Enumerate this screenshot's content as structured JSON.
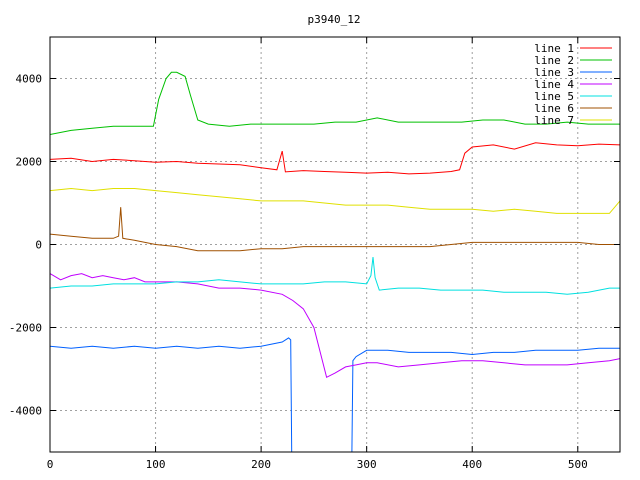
{
  "chart_data": {
    "type": "line",
    "title": "p3940_12",
    "xlabel": "",
    "ylabel": "",
    "xlim": [
      0,
      540
    ],
    "ylim": [
      -5000,
      5000
    ],
    "x_ticks": [
      0,
      100,
      200,
      300,
      400,
      500
    ],
    "y_ticks": [
      -4000,
      -2000,
      0,
      2000,
      4000
    ],
    "grid": true,
    "legend_position": "top-right",
    "series": [
      {
        "name": "line 1",
        "color": "#ff0000",
        "points": [
          [
            0,
            2050
          ],
          [
            20,
            2080
          ],
          [
            40,
            2000
          ],
          [
            60,
            2050
          ],
          [
            80,
            2020
          ],
          [
            100,
            1980
          ],
          [
            120,
            2000
          ],
          [
            140,
            1960
          ],
          [
            160,
            1940
          ],
          [
            180,
            1920
          ],
          [
            200,
            1850
          ],
          [
            215,
            1800
          ],
          [
            220,
            2250
          ],
          [
            223,
            1750
          ],
          [
            240,
            1780
          ],
          [
            260,
            1760
          ],
          [
            280,
            1740
          ],
          [
            300,
            1720
          ],
          [
            320,
            1740
          ],
          [
            340,
            1700
          ],
          [
            360,
            1720
          ],
          [
            380,
            1760
          ],
          [
            388,
            1800
          ],
          [
            393,
            2200
          ],
          [
            400,
            2350
          ],
          [
            420,
            2400
          ],
          [
            440,
            2300
          ],
          [
            460,
            2450
          ],
          [
            480,
            2400
          ],
          [
            500,
            2380
          ],
          [
            520,
            2420
          ],
          [
            540,
            2400
          ]
        ]
      },
      {
        "name": "line 2",
        "color": "#00c000",
        "points": [
          [
            0,
            2650
          ],
          [
            20,
            2750
          ],
          [
            40,
            2800
          ],
          [
            60,
            2850
          ],
          [
            80,
            2850
          ],
          [
            98,
            2850
          ],
          [
            103,
            3500
          ],
          [
            110,
            4000
          ],
          [
            115,
            4150
          ],
          [
            120,
            4150
          ],
          [
            128,
            4050
          ],
          [
            133,
            3600
          ],
          [
            140,
            3000
          ],
          [
            150,
            2900
          ],
          [
            170,
            2850
          ],
          [
            190,
            2900
          ],
          [
            210,
            2900
          ],
          [
            230,
            2900
          ],
          [
            250,
            2900
          ],
          [
            270,
            2950
          ],
          [
            290,
            2950
          ],
          [
            310,
            3050
          ],
          [
            330,
            2950
          ],
          [
            350,
            2950
          ],
          [
            370,
            2950
          ],
          [
            390,
            2950
          ],
          [
            410,
            3000
          ],
          [
            430,
            3000
          ],
          [
            450,
            2900
          ],
          [
            470,
            2900
          ],
          [
            490,
            2950
          ],
          [
            510,
            2900
          ],
          [
            530,
            2900
          ],
          [
            540,
            2900
          ]
        ]
      },
      {
        "name": "line 3",
        "color": "#0060ff",
        "points": [
          [
            0,
            -2450
          ],
          [
            20,
            -2500
          ],
          [
            40,
            -2450
          ],
          [
            60,
            -2500
          ],
          [
            80,
            -2450
          ],
          [
            100,
            -2500
          ],
          [
            120,
            -2450
          ],
          [
            140,
            -2500
          ],
          [
            160,
            -2450
          ],
          [
            180,
            -2500
          ],
          [
            200,
            -2450
          ],
          [
            220,
            -2350
          ],
          [
            226,
            -2250
          ],
          [
            228,
            -2300
          ],
          [
            229,
            -5000
          ],
          [
            286,
            -5000
          ],
          [
            287,
            -2800
          ],
          [
            290,
            -2700
          ],
          [
            300,
            -2550
          ],
          [
            320,
            -2550
          ],
          [
            340,
            -2600
          ],
          [
            360,
            -2600
          ],
          [
            380,
            -2600
          ],
          [
            400,
            -2650
          ],
          [
            420,
            -2600
          ],
          [
            440,
            -2600
          ],
          [
            460,
            -2550
          ],
          [
            480,
            -2550
          ],
          [
            500,
            -2550
          ],
          [
            520,
            -2500
          ],
          [
            540,
            -2500
          ]
        ]
      },
      {
        "name": "line 4",
        "color": "#c000ff",
        "points": [
          [
            0,
            -700
          ],
          [
            10,
            -850
          ],
          [
            20,
            -750
          ],
          [
            30,
            -700
          ],
          [
            40,
            -800
          ],
          [
            50,
            -750
          ],
          [
            60,
            -800
          ],
          [
            70,
            -850
          ],
          [
            80,
            -800
          ],
          [
            90,
            -900
          ],
          [
            100,
            -900
          ],
          [
            120,
            -900
          ],
          [
            140,
            -950
          ],
          [
            160,
            -1050
          ],
          [
            180,
            -1050
          ],
          [
            200,
            -1100
          ],
          [
            220,
            -1200
          ],
          [
            230,
            -1350
          ],
          [
            240,
            -1550
          ],
          [
            250,
            -2000
          ],
          [
            255,
            -2500
          ],
          [
            262,
            -3200
          ],
          [
            270,
            -3100
          ],
          [
            280,
            -2950
          ],
          [
            290,
            -2900
          ],
          [
            300,
            -2850
          ],
          [
            310,
            -2850
          ],
          [
            330,
            -2950
          ],
          [
            350,
            -2900
          ],
          [
            370,
            -2850
          ],
          [
            390,
            -2800
          ],
          [
            410,
            -2800
          ],
          [
            430,
            -2850
          ],
          [
            450,
            -2900
          ],
          [
            470,
            -2900
          ],
          [
            490,
            -2900
          ],
          [
            510,
            -2850
          ],
          [
            530,
            -2800
          ],
          [
            540,
            -2750
          ]
        ]
      },
      {
        "name": "line 5",
        "color": "#00e0e0",
        "points": [
          [
            0,
            -1050
          ],
          [
            20,
            -1000
          ],
          [
            40,
            -1000
          ],
          [
            60,
            -950
          ],
          [
            80,
            -950
          ],
          [
            100,
            -950
          ],
          [
            120,
            -900
          ],
          [
            140,
            -900
          ],
          [
            160,
            -850
          ],
          [
            180,
            -900
          ],
          [
            200,
            -950
          ],
          [
            220,
            -950
          ],
          [
            240,
            -950
          ],
          [
            260,
            -900
          ],
          [
            280,
            -900
          ],
          [
            300,
            -950
          ],
          [
            304,
            -750
          ],
          [
            306,
            -300
          ],
          [
            308,
            -800
          ],
          [
            312,
            -1100
          ],
          [
            330,
            -1050
          ],
          [
            350,
            -1050
          ],
          [
            370,
            -1100
          ],
          [
            390,
            -1100
          ],
          [
            410,
            -1100
          ],
          [
            430,
            -1150
          ],
          [
            450,
            -1150
          ],
          [
            470,
            -1150
          ],
          [
            490,
            -1200
          ],
          [
            510,
            -1150
          ],
          [
            530,
            -1050
          ],
          [
            540,
            -1050
          ]
        ]
      },
      {
        "name": "line 6",
        "color": "#a05000",
        "points": [
          [
            0,
            250
          ],
          [
            20,
            200
          ],
          [
            40,
            150
          ],
          [
            60,
            150
          ],
          [
            65,
            200
          ],
          [
            67,
            900
          ],
          [
            69,
            150
          ],
          [
            80,
            100
          ],
          [
            100,
            0
          ],
          [
            120,
            -50
          ],
          [
            140,
            -150
          ],
          [
            160,
            -150
          ],
          [
            180,
            -150
          ],
          [
            200,
            -100
          ],
          [
            220,
            -100
          ],
          [
            240,
            -50
          ],
          [
            260,
            -50
          ],
          [
            280,
            -50
          ],
          [
            300,
            -50
          ],
          [
            320,
            -50
          ],
          [
            340,
            -50
          ],
          [
            360,
            -50
          ],
          [
            380,
            0
          ],
          [
            400,
            50
          ],
          [
            420,
            50
          ],
          [
            440,
            50
          ],
          [
            460,
            50
          ],
          [
            480,
            50
          ],
          [
            500,
            50
          ],
          [
            520,
            0
          ],
          [
            540,
            0
          ]
        ]
      },
      {
        "name": "line 7",
        "color": "#e0e000",
        "points": [
          [
            0,
            1300
          ],
          [
            20,
            1350
          ],
          [
            40,
            1300
          ],
          [
            60,
            1350
          ],
          [
            80,
            1350
          ],
          [
            100,
            1300
          ],
          [
            120,
            1250
          ],
          [
            140,
            1200
          ],
          [
            160,
            1150
          ],
          [
            180,
            1100
          ],
          [
            200,
            1050
          ],
          [
            220,
            1050
          ],
          [
            240,
            1050
          ],
          [
            260,
            1000
          ],
          [
            280,
            950
          ],
          [
            300,
            950
          ],
          [
            320,
            950
          ],
          [
            340,
            900
          ],
          [
            360,
            850
          ],
          [
            380,
            850
          ],
          [
            400,
            850
          ],
          [
            420,
            800
          ],
          [
            440,
            850
          ],
          [
            460,
            800
          ],
          [
            480,
            750
          ],
          [
            500,
            750
          ],
          [
            520,
            750
          ],
          [
            530,
            750
          ],
          [
            535,
            900
          ],
          [
            540,
            1050
          ]
        ]
      }
    ]
  }
}
